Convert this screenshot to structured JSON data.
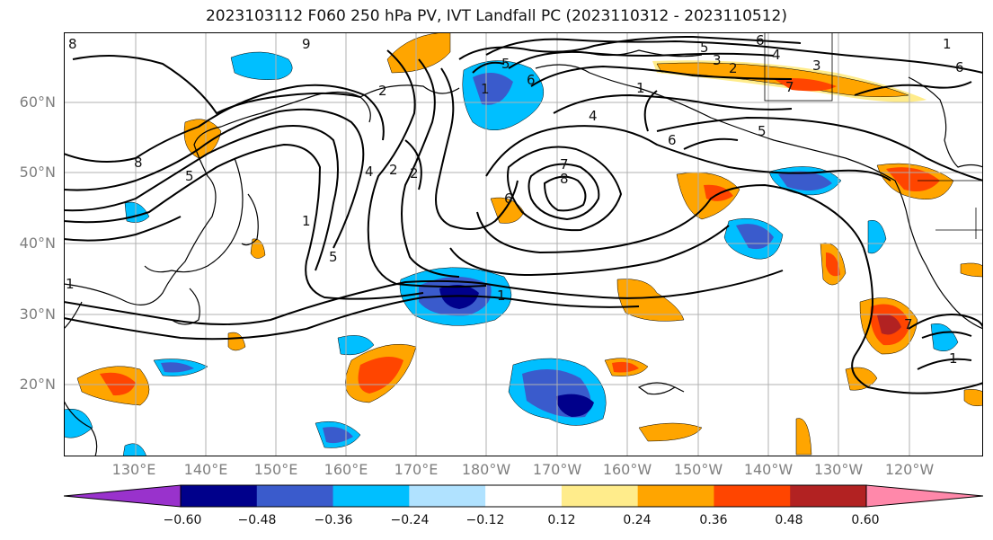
{
  "title": "2023103112 F060 250 hPa PV, IVT Landfall PC (2023110312 - 2023110512)",
  "map": {
    "lat_labels": [
      "60°N",
      "50°N",
      "40°N",
      "30°N",
      "20°N"
    ],
    "lon_labels": [
      "130°E",
      "140°E",
      "150°E",
      "160°E",
      "170°E",
      "180°W",
      "170°W",
      "160°W",
      "150°W",
      "140°W",
      "130°W",
      "120°W"
    ],
    "contour_labels": [
      "8",
      "8",
      "1",
      "5",
      "4",
      "2",
      "2",
      "5",
      "1",
      "6",
      "5",
      "1",
      "6",
      "5",
      "3",
      "2",
      "1",
      "4",
      "7",
      "8",
      "6",
      "5",
      "6",
      "4",
      "3",
      "7",
      "6",
      "1",
      "1",
      "7",
      "9",
      "2",
      "1"
    ],
    "colors": {
      "negative": [
        "#9932cc",
        "#00008b",
        "#3a5bcc",
        "#00bfff",
        "#b0e2ff"
      ],
      "neutral": "#ffffff",
      "positive": [
        "#ffec8b",
        "#ffa500",
        "#ff4500",
        "#b22222",
        "#ff88aa"
      ],
      "contour": "#000000",
      "grid": "#b0b0b0",
      "coast": "#000000"
    }
  },
  "colorbar": {
    "ticks": [
      "−0.60",
      "−0.48",
      "−0.36",
      "−0.24",
      "−0.12",
      "0.12",
      "0.24",
      "0.36",
      "0.48",
      "0.60"
    ],
    "bins": [
      {
        "color": "#9932cc"
      },
      {
        "color": "#00008b"
      },
      {
        "color": "#3a5bcc"
      },
      {
        "color": "#00bfff"
      },
      {
        "color": "#b0e2ff"
      },
      {
        "color": "#ffffff"
      },
      {
        "color": "#ffec8b"
      },
      {
        "color": "#ffa500"
      },
      {
        "color": "#ff4500"
      },
      {
        "color": "#b22222"
      },
      {
        "color": "#ff88aa"
      }
    ]
  }
}
